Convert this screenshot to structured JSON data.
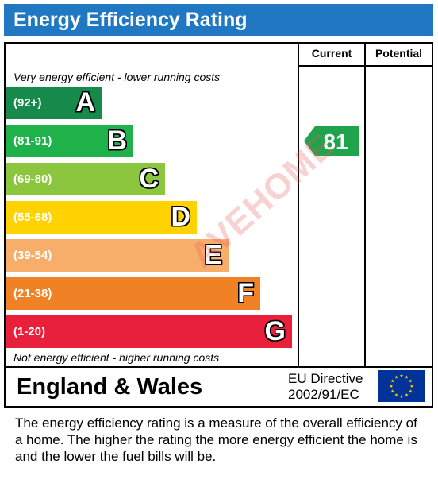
{
  "title": "Energy Efficiency Rating",
  "columns": {
    "current": "Current",
    "potential": "Potential"
  },
  "notes": {
    "top": "Very energy efficient - lower running costs",
    "bottom": "Not energy efficient - higher running costs"
  },
  "chart_data": {
    "type": "bar",
    "categories": [
      "A",
      "B",
      "C",
      "D",
      "E",
      "F",
      "G"
    ],
    "bands": [
      {
        "letter": "A",
        "range": "(92+)",
        "color": "#178a4b"
      },
      {
        "letter": "B",
        "range": "(81-91)",
        "color": "#1fb24b"
      },
      {
        "letter": "C",
        "range": "(69-80)",
        "color": "#8cc63f"
      },
      {
        "letter": "D",
        "range": "(55-68)",
        "color": "#ffd200"
      },
      {
        "letter": "E",
        "range": "(39-54)",
        "color": "#f7ae6b"
      },
      {
        "letter": "F",
        "range": "(21-38)",
        "color": "#f08125"
      },
      {
        "letter": "G",
        "range": "(1-20)",
        "color": "#e8203c"
      }
    ],
    "current": {
      "value": "81",
      "band": "B",
      "color": "#1fa34c"
    },
    "potential": {
      "value": ""
    }
  },
  "footer": {
    "country": "England & Wales",
    "directive_line1": "EU Directive",
    "directive_line2": "2002/91/EC"
  },
  "description": "The energy efficiency rating is a measure of the overall efficiency of a home.  The higher the rating the more energy efficient the home is and the lower the fuel bills will be.",
  "watermark": "AVEHOME",
  "flag": {
    "background": "#003399",
    "stars": "#ffcc00"
  }
}
